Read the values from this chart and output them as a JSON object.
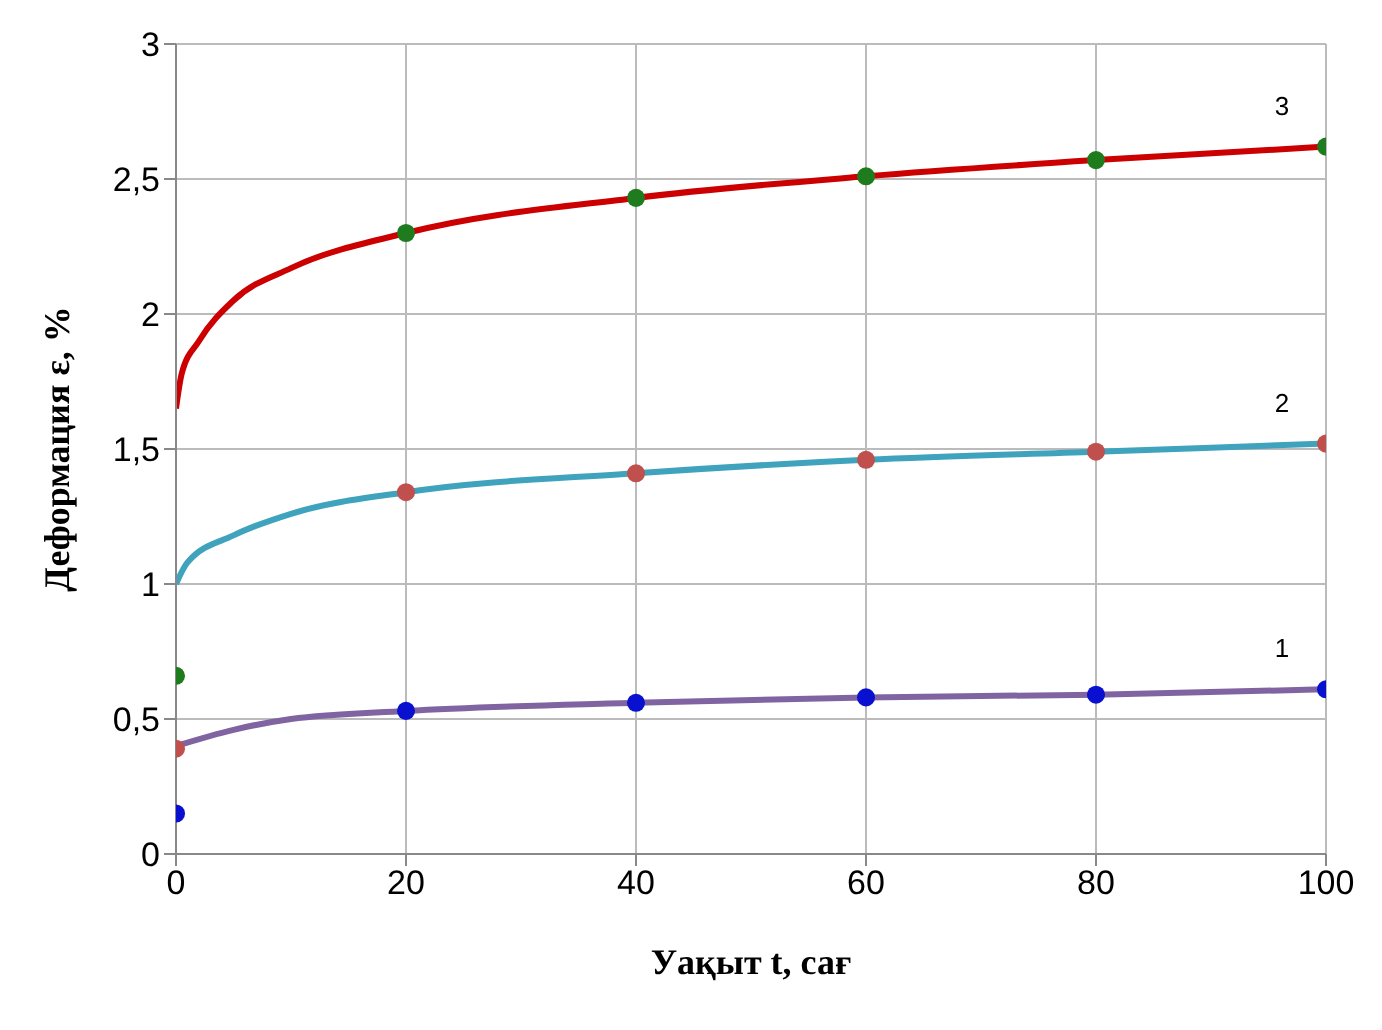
{
  "chart_data": {
    "type": "line",
    "xlabel": "Уақыт  t, сағ",
    "ylabel": "Деформация  ε, %",
    "xlim": [
      0,
      100
    ],
    "xticks": [
      0,
      20,
      40,
      60,
      80,
      100
    ],
    "ylim": [
      0,
      3
    ],
    "yticks": [
      0,
      {
        "value": 0.5,
        "label": "0,5"
      },
      1,
      {
        "value": 1.5,
        "label": "1,5"
      },
      2,
      {
        "value": 2.5,
        "label": "2,5"
      },
      3
    ],
    "grid": true,
    "line_style": "solid",
    "series": [
      {
        "marker": "none",
        "name": "3",
        "color": "#cc0000",
        "x": [
          0,
          0.5,
          2,
          5,
          10,
          20,
          40,
          60,
          80,
          100
        ],
        "values": [
          1.65,
          1.78,
          1.9,
          2.05,
          2.17,
          2.3,
          2.43,
          2.51,
          2.57,
          2.62
        ]
      },
      {
        "marker": "none",
        "name": "2",
        "color": "#3fa3bd",
        "x": [
          0,
          1,
          5,
          10,
          20,
          40,
          60,
          80,
          100
        ],
        "values": [
          1.0,
          1.08,
          1.18,
          1.26,
          1.34,
          1.41,
          1.46,
          1.49,
          1.52
        ]
      },
      {
        "marker": "none",
        "name": "1",
        "color": "#8064a2",
        "x": [
          0,
          5,
          10,
          20,
          40,
          60,
          80,
          100
        ],
        "values": [
          0.4,
          0.46,
          0.5,
          0.53,
          0.56,
          0.58,
          0.59,
          0.61
        ]
      },
      {
        "type": "scatter",
        "marker": "circle",
        "color": "#1e7b1e",
        "x": [
          0,
          20,
          40,
          60,
          80,
          100
        ],
        "values": [
          0.66,
          2.3,
          2.43,
          2.51,
          2.57,
          2.62
        ]
      },
      {
        "type": "scatter",
        "marker": "circle",
        "color": "#c0504d",
        "x": [
          0,
          20,
          40,
          60,
          80,
          100
        ],
        "values": [
          0.39,
          1.34,
          1.41,
          1.46,
          1.49,
          1.52
        ]
      },
      {
        "type": "scatter",
        "marker": "circle",
        "color": "#0a10d0",
        "x": [
          0,
          20,
          40,
          60,
          80,
          100
        ],
        "values": [
          0.15,
          0.53,
          0.56,
          0.58,
          0.59,
          0.61
        ]
      }
    ]
  }
}
